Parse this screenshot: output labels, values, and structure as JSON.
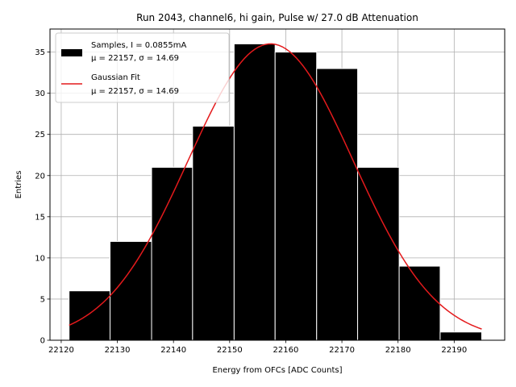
{
  "chart_data": {
    "type": "bar",
    "title": "Run 2043, channel6, hi gain, Pulse w/ 27.0 dB Attenuation",
    "xlabel": "Energy from OFCs [ADC Counts]",
    "ylabel": "Entries",
    "xlim": [
      22118,
      22199
    ],
    "ylim": [
      0,
      37.8
    ],
    "xticks": [
      22120,
      22130,
      22140,
      22150,
      22160,
      22170,
      22180,
      22190
    ],
    "yticks": [
      0,
      5,
      10,
      15,
      20,
      25,
      30,
      35
    ],
    "grid": true,
    "legend_position": "top-left",
    "bins": [
      {
        "left": 22121.4,
        "right": 22128.7,
        "count": 6
      },
      {
        "left": 22128.7,
        "right": 22136.1,
        "count": 12
      },
      {
        "left": 22136.1,
        "right": 22143.4,
        "count": 21
      },
      {
        "left": 22143.4,
        "right": 22150.8,
        "count": 26
      },
      {
        "left": 22150.8,
        "right": 22158.1,
        "count": 36
      },
      {
        "left": 22158.1,
        "right": 22165.5,
        "count": 35
      },
      {
        "left": 22165.5,
        "right": 22172.8,
        "count": 33
      },
      {
        "left": 22172.8,
        "right": 22180.2,
        "count": 21
      },
      {
        "left": 22180.2,
        "right": 22187.5,
        "count": 9
      },
      {
        "left": 22187.5,
        "right": 22194.9,
        "count": 1
      }
    ],
    "series": [
      {
        "name": "Samples, I = 0.0855mA",
        "stats": "μ = 22157, σ = 14.69",
        "kind": "histogram",
        "color": "#000000"
      },
      {
        "name": "Gaussian Fit",
        "stats": "μ = 22157, σ = 14.69",
        "kind": "line",
        "color": "#e41a1c"
      }
    ],
    "fit": {
      "mu": 22157.3,
      "sigma": 14.69,
      "amplitude": 36.0,
      "x_range": [
        22121.4,
        22194.9
      ]
    }
  }
}
